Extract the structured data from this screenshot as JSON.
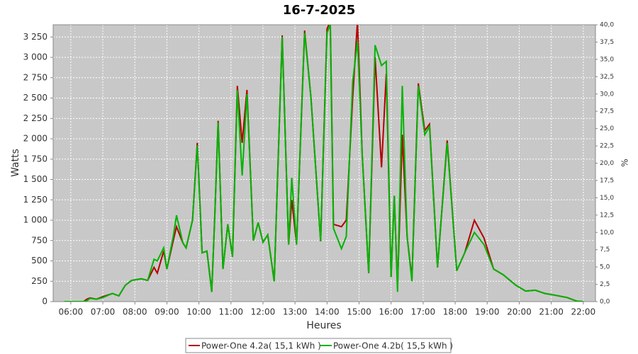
{
  "chart_data": {
    "type": "line",
    "title": "16-7-2025",
    "xlabel": "Heures",
    "ylabel": "Watts",
    "y2label": "%",
    "x": [
      5.8,
      6.4,
      6.5,
      6.6,
      6.8,
      7.0,
      7.3,
      7.5,
      7.7,
      7.9,
      8.2,
      8.4,
      8.6,
      8.7,
      8.9,
      9.0,
      9.2,
      9.3,
      9.5,
      9.6,
      9.8,
      9.95,
      10.1,
      10.25,
      10.4,
      10.5,
      10.6,
      10.75,
      10.9,
      11.05,
      11.2,
      11.35,
      11.5,
      11.7,
      11.85,
      12.0,
      12.15,
      12.35,
      12.6,
      12.8,
      12.9,
      13.05,
      13.3,
      13.5,
      13.8,
      14.0,
      14.1,
      14.2,
      14.45,
      14.6,
      14.8,
      14.95,
      15.1,
      15.3,
      15.5,
      15.7,
      15.85,
      16.0,
      16.1,
      16.2,
      16.35,
      16.5,
      16.65,
      16.85,
      17.05,
      17.2,
      17.45,
      17.75,
      18.05,
      18.3,
      18.6,
      18.9,
      19.2,
      19.5,
      19.9,
      20.2,
      20.5,
      20.8,
      21.1,
      21.5,
      21.8,
      22.0
    ],
    "series": [
      {
        "name": "Power-One 4.2a( 15,1 kWh )",
        "color": "#b40000",
        "values": [
          0,
          0,
          30,
          45,
          30,
          60,
          100,
          70,
          200,
          260,
          280,
          260,
          420,
          350,
          620,
          400,
          750,
          920,
          720,
          660,
          1000,
          1950,
          600,
          620,
          120,
          1100,
          2220,
          400,
          950,
          550,
          2650,
          1950,
          2600,
          750,
          970,
          730,
          820,
          250,
          3270,
          700,
          1250,
          700,
          3330,
          2500,
          740,
          3350,
          3450,
          950,
          920,
          1000,
          2500,
          3450,
          1800,
          350,
          3000,
          1650,
          2800,
          300,
          1300,
          180,
          2050,
          800,
          280,
          2680,
          2100,
          2180,
          420,
          1980,
          380,
          600,
          1000,
          780,
          400,
          330,
          200,
          130,
          140,
          100,
          80,
          50,
          5,
          0
        ]
      },
      {
        "name": "Power-One 4.2b( 15,5 kWh )",
        "color": "#00b400",
        "values": [
          0,
          0,
          10,
          40,
          30,
          50,
          100,
          70,
          200,
          260,
          280,
          260,
          520,
          500,
          660,
          400,
          800,
          1060,
          720,
          660,
          1000,
          1920,
          600,
          620,
          120,
          1100,
          2200,
          400,
          950,
          550,
          2600,
          1550,
          2550,
          750,
          970,
          730,
          820,
          250,
          3250,
          700,
          1520,
          700,
          3300,
          2500,
          740,
          3300,
          3400,
          900,
          650,
          800,
          2700,
          3200,
          1800,
          350,
          3150,
          2900,
          2950,
          300,
          1300,
          120,
          2650,
          800,
          250,
          2650,
          2050,
          2150,
          420,
          1950,
          380,
          600,
          850,
          700,
          400,
          330,
          200,
          130,
          140,
          100,
          80,
          50,
          5,
          0
        ]
      }
    ],
    "xlim": [
      5.45,
      22.38
    ],
    "xticks": [
      {
        "value": 6,
        "label": "06:00"
      },
      {
        "value": 7,
        "label": "07:00"
      },
      {
        "value": 8,
        "label": "08:00"
      },
      {
        "value": 9,
        "label": "09:00"
      },
      {
        "value": 10,
        "label": "10:00"
      },
      {
        "value": 11,
        "label": "11:00"
      },
      {
        "value": 12,
        "label": "12:00"
      },
      {
        "value": 13,
        "label": "13:00"
      },
      {
        "value": 14,
        "label": "14:00"
      },
      {
        "value": 15,
        "label": "15:00"
      },
      {
        "value": 16,
        "label": "16:00"
      },
      {
        "value": 17,
        "label": "17:00"
      },
      {
        "value": 18,
        "label": "18:00"
      },
      {
        "value": 19,
        "label": "19:00"
      },
      {
        "value": 20,
        "label": "20:00"
      },
      {
        "value": 21,
        "label": "21:00"
      },
      {
        "value": 22,
        "label": "22:00"
      }
    ],
    "ylim": [
      0,
      3400
    ],
    "yticks": [
      0,
      250,
      500,
      750,
      {
        "value": 1000,
        "label": "1 000"
      },
      {
        "value": 1250,
        "label": "1 250"
      },
      {
        "value": 1500,
        "label": "1 500"
      },
      {
        "value": 1750,
        "label": "1 750"
      },
      {
        "value": 2000,
        "label": "2 000"
      },
      {
        "value": 2250,
        "label": "2 250"
      },
      {
        "value": 2500,
        "label": "2 500"
      },
      {
        "value": 2750,
        "label": "2 750"
      },
      {
        "value": 3000,
        "label": "3 000"
      },
      {
        "value": 3250,
        "label": "3 250"
      }
    ],
    "y2lim": [
      0,
      40
    ],
    "y2ticks": [
      {
        "value": 0,
        "label": "0,0"
      },
      {
        "value": 2.5,
        "label": "2,5"
      },
      {
        "value": 5,
        "label": "5,0"
      },
      {
        "value": 7.5,
        "label": "7,5"
      },
      {
        "value": 10,
        "label": "10,0"
      },
      {
        "value": 12.5,
        "label": "12,5"
      },
      {
        "value": 15,
        "label": "15,0"
      },
      {
        "value": 17.5,
        "label": "17,5"
      },
      {
        "value": 20,
        "label": "20,0"
      },
      {
        "value": 22.5,
        "label": "22,5"
      },
      {
        "value": 25,
        "label": "25,0"
      },
      {
        "value": 27.5,
        "label": "27,5"
      },
      {
        "value": 30,
        "label": "30,0"
      },
      {
        "value": 32.5,
        "label": "32,5"
      },
      {
        "value": 35,
        "label": "35,0"
      },
      {
        "value": 37.5,
        "label": "37,5"
      },
      {
        "value": 40,
        "label": "40,0"
      }
    ],
    "grid": true,
    "legend": "bottom"
  }
}
